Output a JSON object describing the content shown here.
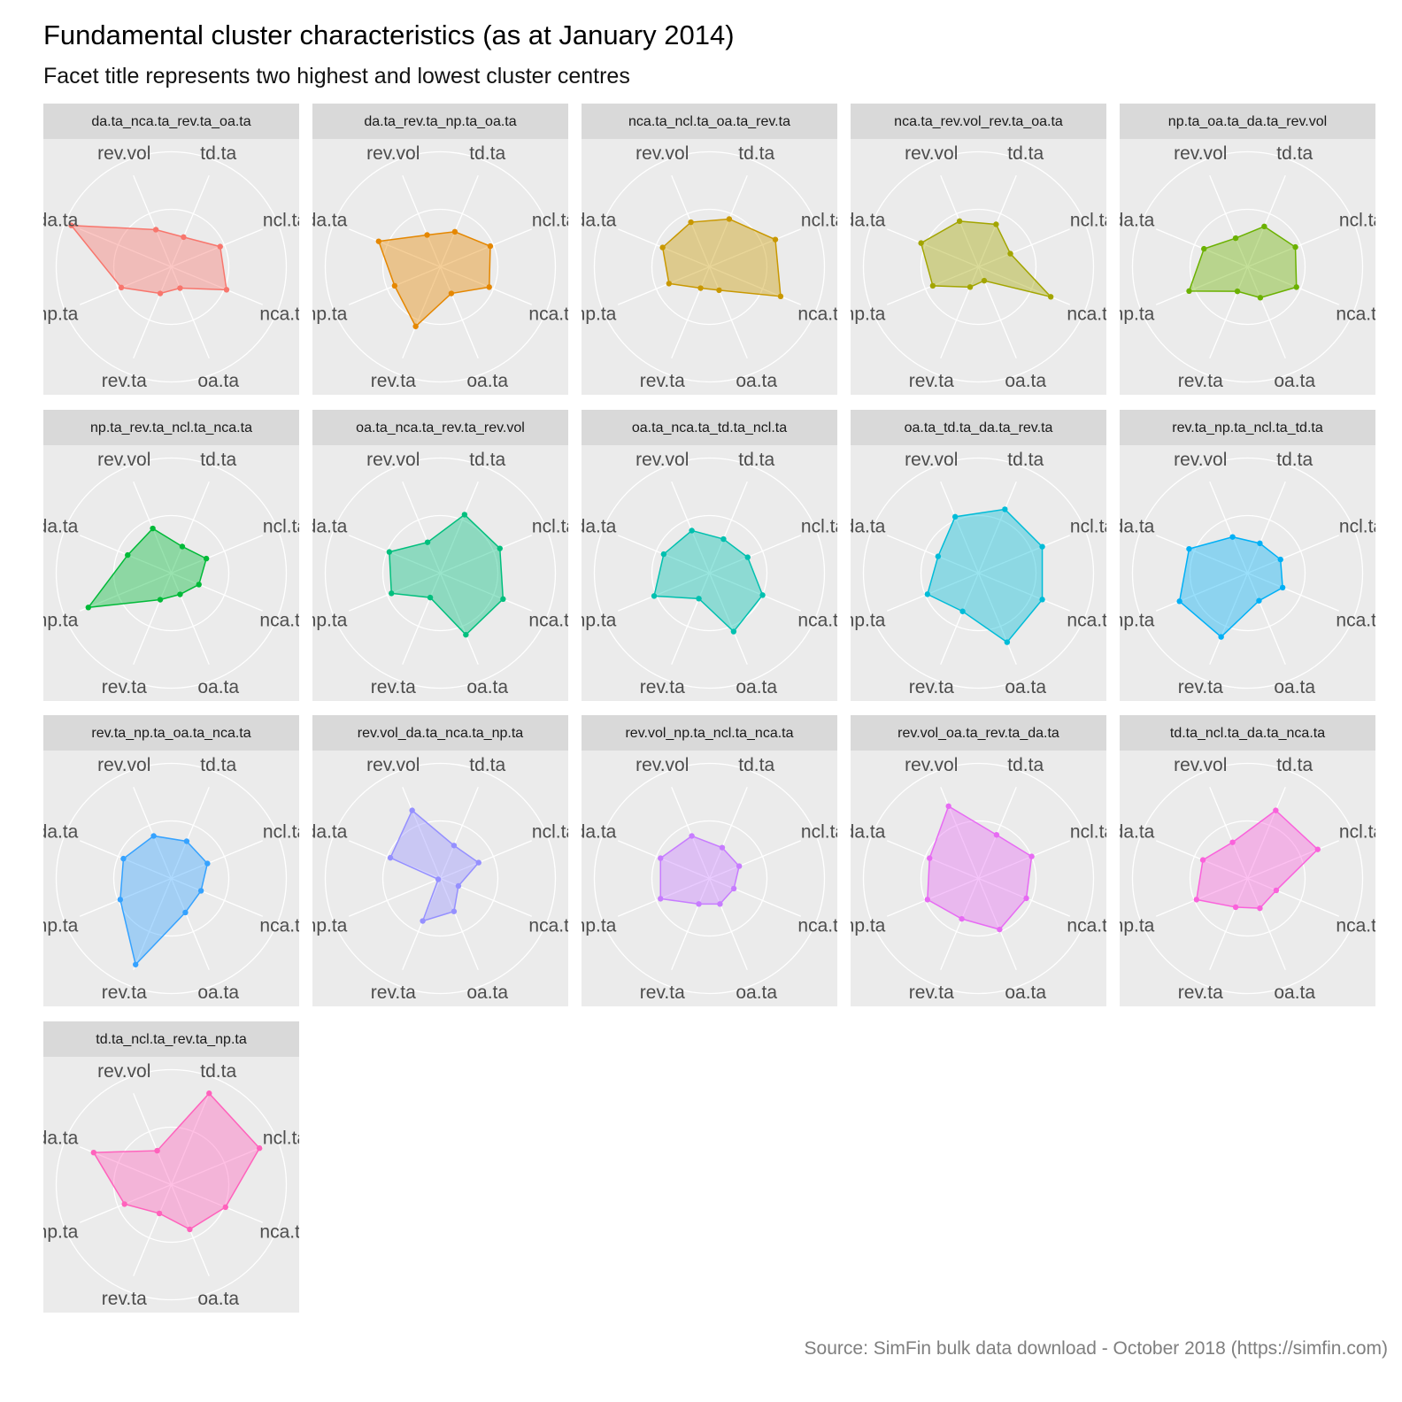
{
  "title": "Fundamental cluster characteristics (as at January 2014)",
  "subtitle": "Facet title represents two highest and lowest cluster centres",
  "caption": "Source: SimFin bulk data download - October 2018 (https://simfin.com)",
  "chart_data": {
    "type": "radar",
    "axes": [
      "td.ta",
      "ncl.ta",
      "nca.ta",
      "oa.ta",
      "rev.ta",
      "np.ta",
      "da.ta",
      "rev.vol"
    ],
    "rlim": [
      0,
      1
    ],
    "grid": true,
    "panels": [
      {
        "title": "da.ta_nca.ta_rev.ta_oa.ta",
        "color": "#F8766D",
        "values": [
          0.28,
          0.46,
          0.52,
          0.2,
          0.25,
          0.47,
          0.94,
          0.35
        ]
      },
      {
        "title": "da.ta_rev.ta_np.ta_oa.ta",
        "color": "#E58700",
        "values": [
          0.33,
          0.47,
          0.46,
          0.25,
          0.56,
          0.43,
          0.58,
          0.3
        ]
      },
      {
        "title": "nca.ta_ncl.ta_oa.ta_rev.ta",
        "color": "#C99800",
        "values": [
          0.45,
          0.62,
          0.67,
          0.22,
          0.2,
          0.38,
          0.44,
          0.42
        ]
      },
      {
        "title": "nca.ta_rev.vol_rev.ta_oa.ta",
        "color": "#A3A500",
        "values": [
          0.4,
          0.3,
          0.68,
          0.13,
          0.19,
          0.43,
          0.54,
          0.43
        ]
      },
      {
        "title": "np.ta_oa.ta_da.ta_rev.vol",
        "color": "#6BB100",
        "values": [
          0.38,
          0.45,
          0.46,
          0.29,
          0.23,
          0.55,
          0.41,
          0.27
        ]
      },
      {
        "title": "np.ta_rev.ta_ncl.ta_nca.ta",
        "color": "#00BA38",
        "values": [
          0.25,
          0.33,
          0.26,
          0.2,
          0.25,
          0.78,
          0.41,
          0.42
        ]
      },
      {
        "title": "oa.ta_nca.ta_rev.ta_rev.vol",
        "color": "#00BF7D",
        "values": [
          0.55,
          0.56,
          0.59,
          0.58,
          0.23,
          0.46,
          0.48,
          0.29
        ]
      },
      {
        "title": "oa.ta_nca.ta_td.ta_ncl.ta",
        "color": "#00C0AF",
        "values": [
          0.32,
          0.36,
          0.5,
          0.55,
          0.24,
          0.52,
          0.43,
          0.4
        ]
      },
      {
        "title": "oa.ta_td.ta_da.ta_rev.ta",
        "color": "#00BCD8",
        "values": [
          0.6,
          0.6,
          0.6,
          0.65,
          0.36,
          0.48,
          0.38,
          0.53
        ]
      },
      {
        "title": "rev.ta_np.ta_ncl.ta_td.ta",
        "color": "#00B0F6",
        "values": [
          0.28,
          0.31,
          0.33,
          0.26,
          0.6,
          0.64,
          0.55,
          0.34
        ]
      },
      {
        "title": "rev.ta_np.ta_oa.ta_nca.ta",
        "color": "#35A2FF",
        "values": [
          0.35,
          0.34,
          0.28,
          0.32,
          0.81,
          0.48,
          0.45,
          0.4
        ]
      },
      {
        "title": "rev.vol_da.ta_nca.ta_np.ta",
        "color": "#9590FF",
        "values": [
          0.31,
          0.36,
          0.17,
          0.31,
          0.4,
          0.02,
          0.47,
          0.64
        ]
      },
      {
        "title": "rev.vol_np.ta_ncl.ta_nca.ta",
        "color": "#C77CFF",
        "values": [
          0.29,
          0.28,
          0.23,
          0.24,
          0.24,
          0.46,
          0.46,
          0.4
        ]
      },
      {
        "title": "rev.vol_oa.ta_rev.ta_da.ta",
        "color": "#E76BF3",
        "values": [
          0.41,
          0.5,
          0.45,
          0.48,
          0.38,
          0.48,
          0.46,
          0.68
        ]
      },
      {
        "title": "td.ta_ncl.ta_da.ta_nca.ta",
        "color": "#FA62DB",
        "values": [
          0.64,
          0.66,
          0.27,
          0.28,
          0.27,
          0.48,
          0.42,
          0.34
        ]
      },
      {
        "title": "td.ta_ncl.ta_rev.ta_np.ta",
        "color": "#FF62BC",
        "values": [
          0.86,
          0.83,
          0.51,
          0.42,
          0.27,
          0.44,
          0.73,
          0.32
        ]
      }
    ]
  }
}
